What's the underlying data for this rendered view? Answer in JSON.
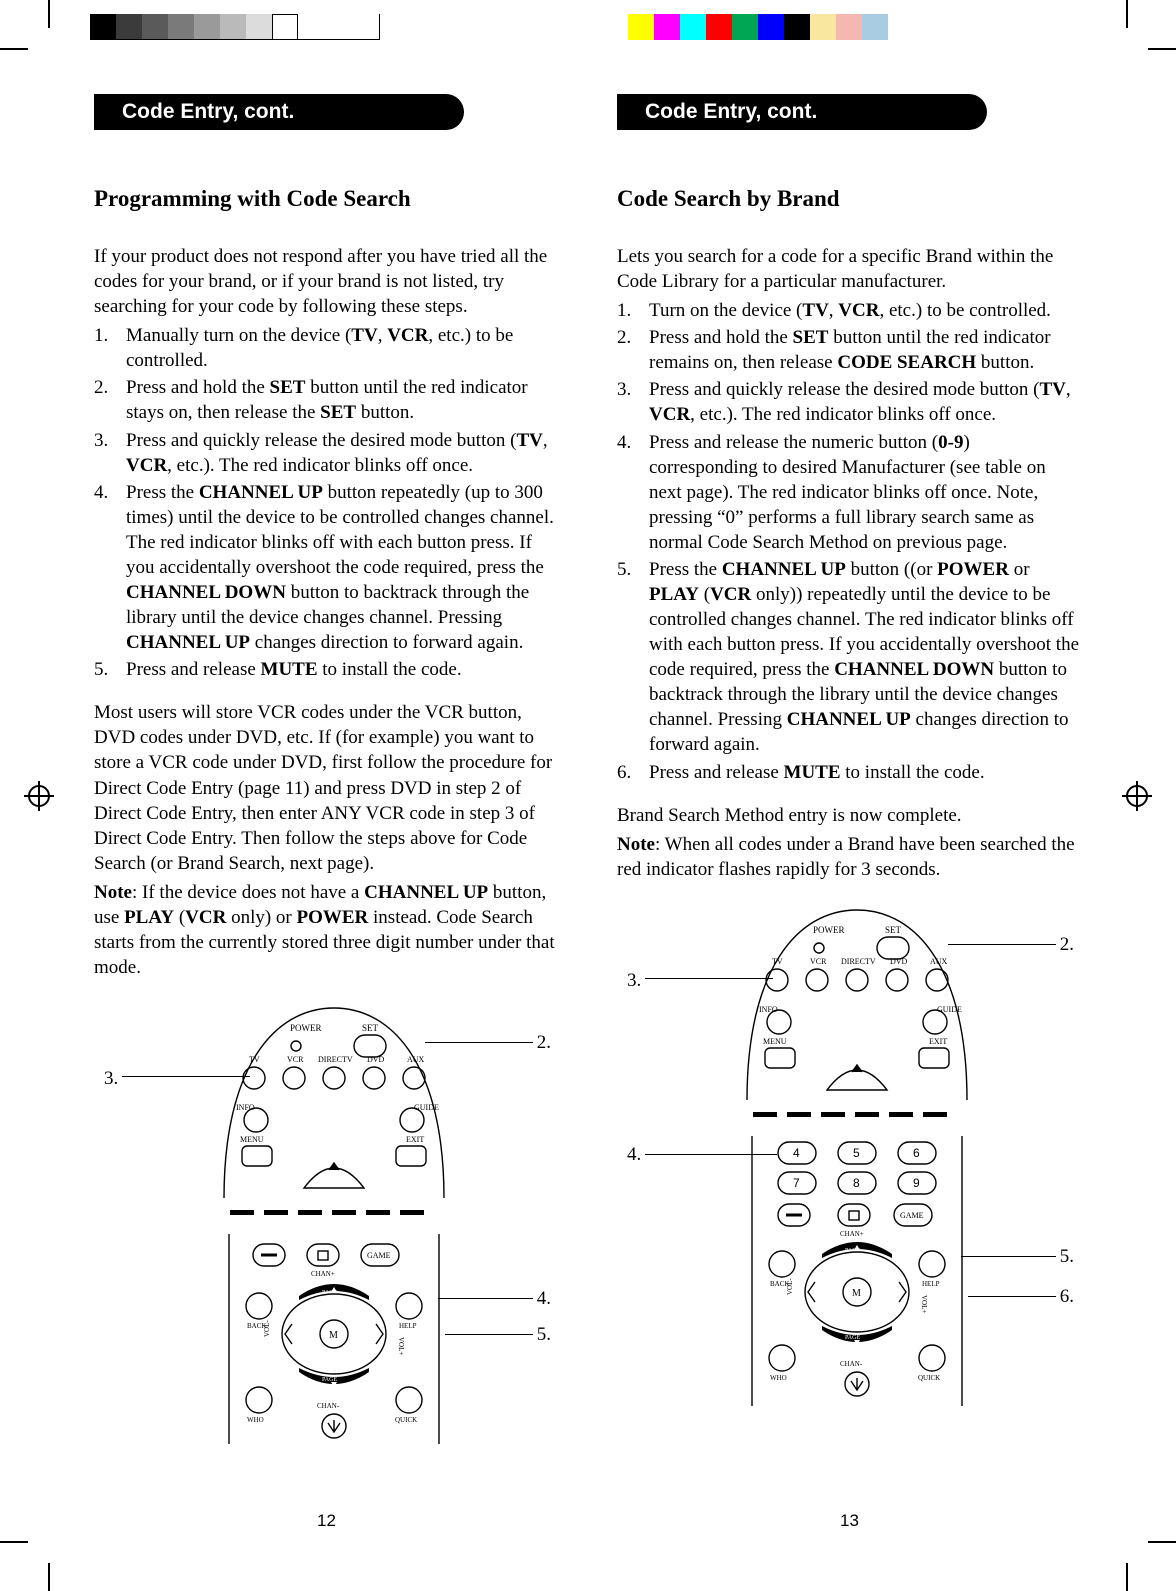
{
  "crop_marks": {
    "color": "#000000"
  },
  "colorbars": {
    "left": [
      "#000000",
      "#3b3b3b",
      "#5a5a5a",
      "#7a7a7a",
      "#9a9a9a",
      "#bababa",
      "#dcdcdc",
      "#ffffff"
    ],
    "right": [
      "#ffff00",
      "#ff00ff",
      "#00ffff",
      "#ff0000",
      "#00a651",
      "#0000ff",
      "#000000",
      "#f9e79f",
      "#f5b7b1",
      "#a9cce3"
    ]
  },
  "left_page": {
    "header": "Code Entry, cont.",
    "subhead": "Programming with Code Search",
    "intro": "If your product does not respond after you have tried all the codes for your brand, or if your brand is not listed, try searching for your code by following these steps.",
    "steps": [
      "Manually turn on the device (TV, VCR, etc.) to be controlled.",
      "Press and hold the SET button until the red indicator stays on, then release the SET button.",
      "Press and quickly release the desired mode button (TV, VCR, etc.). The red indicator blinks off once.",
      "Press the CHANNEL UP button repeatedly (up to 300 times) until the device to be controlled changes channel. The red indicator blinks off with each button press. If you accidentally overshoot the code required, press the CHANNEL DOWN button to backtrack through the library until the device changes channel. Pressing CHANNEL UP changes direction to forward again.",
      "Press and release MUTE to install the code."
    ],
    "para2": "Most users will store VCR codes under the VCR button, DVD codes under DVD, etc. If (for example) you want to store a VCR code under DVD, first follow the procedure for Direct Code Entry (page 11) and press DVD in step 2 of Direct Code Entry, then enter ANY VCR code in step 3 of Direct Code Entry. Then follow the steps above for Code Search (or Brand Search, next page).",
    "note": "Note: If the device does not have a CHANNEL UP button, use PLAY (VCR only) or POWER instead. Code Search starts from the currently stored three digit number under that mode.",
    "callouts": {
      "c2": "2.",
      "c3": "3.",
      "c4": "4.",
      "c5": "5."
    },
    "pagenum": "12"
  },
  "right_page": {
    "header": "Code Entry, cont.",
    "subhead": "Code Search by Brand",
    "intro": "Lets you search for a code for a specific Brand within the Code Library for a particular manufacturer.",
    "steps": [
      "Turn on the device (TV, VCR, etc.) to be controlled.",
      "Press and hold the SET button until the red indicator remains on, then release CODE SEARCH button.",
      "Press and quickly release the desired mode button (TV, VCR, etc.). The red indicator blinks off once.",
      "Press and release the numeric button (0-9) corresponding to desired Manufacturer (see table on next page). The red indicator blinks off once. Note, pressing “0” performs a full library search same as normal Code Search Method on previous page.",
      "Press the CHANNEL UP button ((or POWER or PLAY (VCR only)) repeatedly until the device to be controlled changes channel. The red indicator blinks off with each button press. If you accidentally overshoot the code required, press the CHANNEL DOWN button to backtrack through the library until the device changes channel. Pressing CHANNEL UP changes direction to forward again.",
      "Press and release MUTE to install the code."
    ],
    "para2": "Brand Search Method entry is now complete.",
    "note": "Note: When all codes under a Brand have been searched the red indicator flashes rapidly for 3 seconds.",
    "callouts": {
      "c2": "2.",
      "c3": "3.",
      "c4": "4.",
      "c5": "5.",
      "c6": "6."
    },
    "pagenum": "13"
  },
  "remote": {
    "top_labels": {
      "power": "POWER",
      "set": "SET",
      "tv": "TV",
      "vcr": "VCR",
      "directv": "DIRECTV",
      "dvd": "DVD",
      "aux": "AUX",
      "info": "INFO",
      "guide": "GUIDE",
      "menu": "MENU",
      "exit": "EXIT"
    },
    "bottom_labels": {
      "game": "GAME",
      "chanplus": "CHAN+",
      "back": "BACK",
      "help": "HELP",
      "page1": "PAGE",
      "page2": "PAGE",
      "who": "WHO",
      "quick": "QUICK",
      "chanminus": "CHAN-",
      "volminus": "VOL-",
      "volplus": "VOL+",
      "m": "M"
    },
    "numbers": [
      "4",
      "5",
      "6",
      "7",
      "8",
      "9"
    ]
  }
}
